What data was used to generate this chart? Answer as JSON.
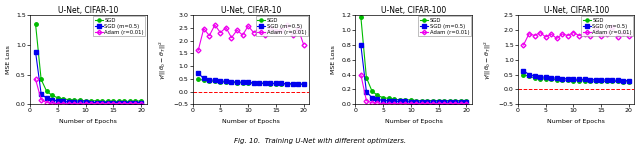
{
  "titles": [
    "U-Net, CIFAR-10",
    "U-Net, CIFAR-10",
    "U-Net, CIFAR-100",
    "U-Net, CIFAR-100"
  ],
  "ylabels": [
    "MSE Loss",
    "MSE Loss"
  ],
  "xlabel": "Number of Epochs",
  "legend_labels": [
    "SGD",
    "SGD (m=0.5)",
    "Adam (r=0.01)"
  ],
  "colors": [
    "#00bb00",
    "#0000ee",
    "#ee00ee"
  ],
  "markers": [
    "o",
    "s",
    "D"
  ],
  "epochs": [
    1,
    2,
    3,
    4,
    5,
    6,
    7,
    8,
    9,
    10,
    11,
    12,
    13,
    14,
    15,
    16,
    17,
    18,
    19,
    20
  ],
  "plot1_sgd": [
    1.35,
    0.42,
    0.22,
    0.15,
    0.11,
    0.09,
    0.08,
    0.07,
    0.07,
    0.06,
    0.06,
    0.06,
    0.05,
    0.05,
    0.05,
    0.05,
    0.05,
    0.05,
    0.05,
    0.06
  ],
  "plot1_sgdm": [
    0.88,
    0.18,
    0.1,
    0.07,
    0.06,
    0.05,
    0.04,
    0.04,
    0.04,
    0.04,
    0.03,
    0.03,
    0.03,
    0.03,
    0.03,
    0.03,
    0.03,
    0.03,
    0.03,
    0.03
  ],
  "plot1_adam": [
    0.42,
    0.08,
    0.03,
    0.02,
    0.01,
    0.01,
    0.01,
    0.01,
    0.01,
    0.01,
    0.01,
    0.01,
    0.01,
    0.01,
    0.01,
    0.01,
    0.01,
    0.01,
    0.01,
    0.01
  ],
  "plot2_sgd": [
    0.5,
    0.44,
    0.42,
    0.4,
    0.38,
    0.37,
    0.36,
    0.35,
    0.34,
    0.33,
    0.33,
    0.32,
    0.32,
    0.31,
    0.31,
    0.3,
    0.3,
    0.29,
    0.29,
    0.28
  ],
  "plot2_sgdm": [
    0.72,
    0.52,
    0.47,
    0.44,
    0.42,
    0.4,
    0.39,
    0.38,
    0.37,
    0.36,
    0.35,
    0.34,
    0.33,
    0.33,
    0.32,
    0.32,
    0.31,
    0.31,
    0.3,
    0.3
  ],
  "plot2_adam": [
    1.62,
    2.48,
    2.2,
    2.62,
    2.32,
    2.52,
    2.12,
    2.42,
    2.22,
    2.58,
    2.32,
    2.48,
    2.22,
    2.52,
    2.38,
    2.42,
    2.62,
    2.22,
    2.48,
    1.85
  ],
  "plot3_sgd": [
    1.18,
    0.36,
    0.18,
    0.12,
    0.09,
    0.08,
    0.07,
    0.06,
    0.06,
    0.06,
    0.05,
    0.05,
    0.05,
    0.05,
    0.05,
    0.05,
    0.05,
    0.05,
    0.05,
    0.05
  ],
  "plot3_sgdm": [
    0.8,
    0.17,
    0.09,
    0.07,
    0.05,
    0.05,
    0.04,
    0.04,
    0.04,
    0.03,
    0.03,
    0.03,
    0.03,
    0.03,
    0.03,
    0.03,
    0.03,
    0.03,
    0.03,
    0.03
  ],
  "plot3_adam": [
    0.4,
    0.05,
    0.02,
    0.02,
    0.01,
    0.01,
    0.01,
    0.01,
    0.01,
    0.01,
    0.01,
    0.01,
    0.01,
    0.01,
    0.01,
    0.01,
    0.01,
    0.01,
    0.01,
    0.01
  ],
  "plot4_sgd": [
    0.5,
    0.44,
    0.4,
    0.37,
    0.35,
    0.34,
    0.33,
    0.32,
    0.31,
    0.3,
    0.3,
    0.29,
    0.29,
    0.28,
    0.28,
    0.27,
    0.27,
    0.27,
    0.26,
    0.26
  ],
  "plot4_sgdm": [
    0.64,
    0.5,
    0.46,
    0.43,
    0.41,
    0.39,
    0.38,
    0.37,
    0.36,
    0.35,
    0.34,
    0.34,
    0.33,
    0.33,
    0.32,
    0.32,
    0.31,
    0.31,
    0.3,
    0.3
  ],
  "plot4_adam": [
    1.5,
    1.88,
    1.82,
    1.92,
    1.77,
    1.87,
    1.72,
    1.87,
    1.82,
    1.92,
    1.82,
    1.87,
    1.82,
    2.07,
    1.82,
    1.87,
    2.12,
    1.77,
    1.92,
    1.82
  ],
  "ylim1": [
    0,
    1.5
  ],
  "ylim2": [
    -0.5,
    3.0
  ],
  "ylim3": [
    0,
    1.2
  ],
  "ylim4": [
    -0.5,
    2.5
  ],
  "yticks1": [
    0,
    0.5,
    1.0,
    1.5
  ],
  "yticks2": [
    -0.5,
    0,
    0.5,
    1.0,
    1.5,
    2.0,
    2.5,
    3.0
  ],
  "yticks3": [
    0,
    0.2,
    0.4,
    0.6,
    0.8,
    1.0,
    1.2
  ],
  "yticks4": [
    -0.5,
    0,
    0.5,
    1.0,
    1.5,
    2.0,
    2.5
  ],
  "caption": "Fig. 10.  Training U-Net with different optimizers.",
  "bg_color": "#ffffff",
  "linewidth": 0.8,
  "markersize": 2.5
}
